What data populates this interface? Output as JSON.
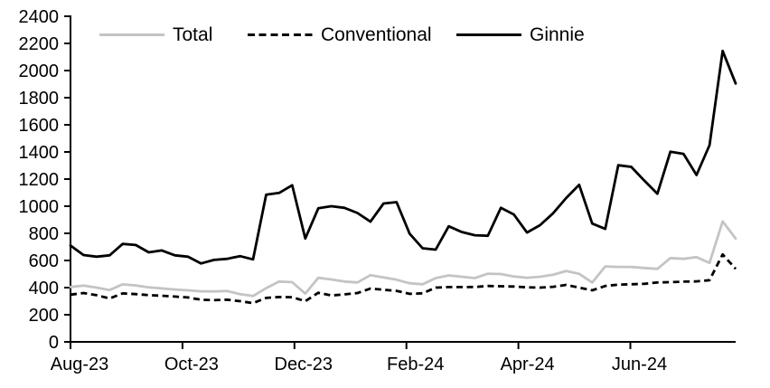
{
  "chart_data": {
    "type": "line",
    "title": "",
    "xlabel": "",
    "ylabel": "",
    "frequency": "weekly",
    "grid": false,
    "legend_position": "top",
    "axis_color": "#000000",
    "background_color": "#ffffff",
    "ylim": [
      0,
      2400
    ],
    "y_tick_step": 200,
    "y_ticks": [
      0,
      200,
      400,
      600,
      800,
      1000,
      1200,
      1400,
      1600,
      1800,
      2000,
      2200,
      2400
    ],
    "x_tick_labels": [
      "Aug-23",
      "Oct-23",
      "Dec-23",
      "Feb-24",
      "Apr-24",
      "Jun-24"
    ],
    "series": [
      {
        "name": "Total",
        "color": "#c4c4c4",
        "style": "solid",
        "values": [
          405,
          415,
          400,
          382,
          424,
          416,
          402,
          394,
          386,
          380,
          373,
          372,
          375,
          352,
          338,
          396,
          445,
          440,
          356,
          472,
          460,
          445,
          438,
          492,
          475,
          458,
          432,
          425,
          470,
          490,
          480,
          470,
          503,
          500,
          482,
          473,
          480,
          495,
          523,
          502,
          437,
          556,
          553,
          552,
          545,
          538,
          618,
          612,
          625,
          582,
          888,
          762
        ]
      },
      {
        "name": "Conventional",
        "color": "#000000",
        "style": "dashed",
        "values": [
          348,
          360,
          344,
          320,
          357,
          352,
          345,
          340,
          334,
          327,
          311,
          307,
          311,
          300,
          286,
          324,
          331,
          329,
          300,
          362,
          342,
          350,
          360,
          393,
          384,
          376,
          354,
          358,
          400,
          404,
          404,
          405,
          412,
          410,
          408,
          402,
          400,
          406,
          420,
          400,
          380,
          412,
          422,
          425,
          428,
          438,
          440,
          444,
          446,
          455,
          645,
          538
        ]
      },
      {
        "name": "Ginnie",
        "color": "#000000",
        "style": "solid",
        "values": [
          710,
          640,
          628,
          638,
          722,
          714,
          660,
          674,
          638,
          628,
          578,
          604,
          612,
          632,
          608,
          1085,
          1098,
          1155,
          762,
          985,
          1000,
          988,
          950,
          886,
          1020,
          1030,
          798,
          690,
          680,
          852,
          810,
          786,
          782,
          988,
          938,
          806,
          860,
          948,
          1060,
          1158,
          872,
          833,
          1302,
          1290,
          1188,
          1092,
          1402,
          1386,
          1230,
          1450,
          2145,
          1905
        ]
      }
    ]
  }
}
